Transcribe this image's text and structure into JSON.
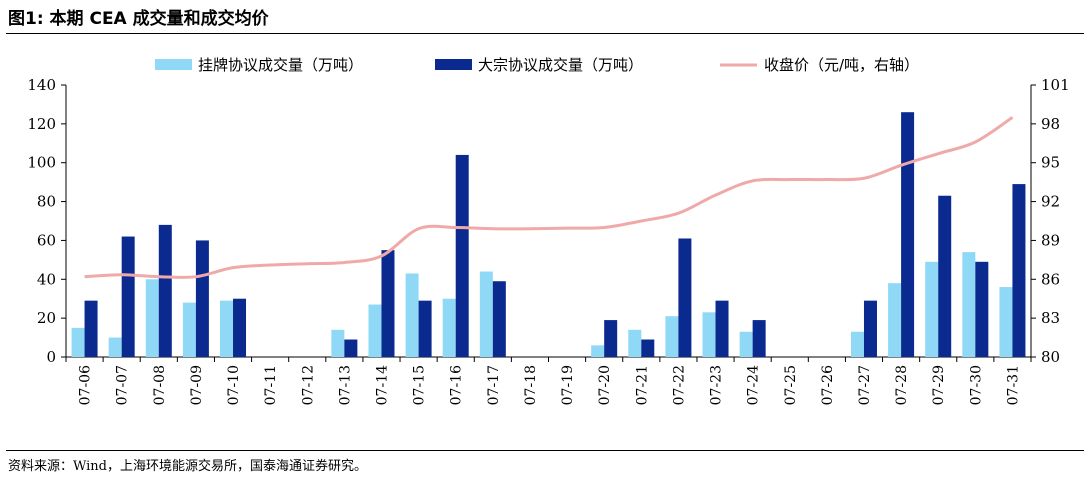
{
  "figure": {
    "title": "图1:  本期 CEA 成交量和成交均价",
    "source": "资料来源：Wind，上海环境能源交易所，国泰海通证券研究。"
  },
  "colors": {
    "listed_bar": "#8fd9f7",
    "block_bar": "#0a2a8f",
    "close_line": "#f0a9a9",
    "axis": "#000000"
  },
  "chart_data": {
    "type": "bar",
    "categories": [
      "07-06",
      "07-07",
      "07-08",
      "07-09",
      "07-10",
      "07-11",
      "07-12",
      "07-13",
      "07-14",
      "07-15",
      "07-16",
      "07-17",
      "07-18",
      "07-19",
      "07-20",
      "07-21",
      "07-22",
      "07-23",
      "07-24",
      "07-25",
      "07-26",
      "07-27",
      "07-28",
      "07-29",
      "07-30",
      "07-31"
    ],
    "series": [
      {
        "name": "挂牌协议成交量（万吨）",
        "type": "bar",
        "axis": "left",
        "values": [
          15,
          10,
          40,
          28,
          29,
          0,
          0,
          14,
          27,
          43,
          30,
          44,
          0,
          0,
          6,
          14,
          21,
          23,
          13,
          0,
          0,
          13,
          38,
          49,
          54,
          36
        ]
      },
      {
        "name": "大宗协议成交量（万吨）",
        "type": "bar",
        "axis": "left",
        "values": [
          29,
          62,
          68,
          60,
          30,
          0,
          0,
          9,
          55,
          29,
          104,
          39,
          0,
          0,
          19,
          9,
          61,
          29,
          19,
          0,
          0,
          29,
          126,
          83,
          49,
          89
        ]
      },
      {
        "name": "收盘价（元/吨，右轴）",
        "type": "line",
        "axis": "right",
        "values": [
          86.2,
          86.35,
          86.2,
          86.2,
          86.9,
          87.1,
          87.2,
          87.3,
          87.8,
          89.9,
          90.0,
          89.9,
          89.9,
          89.95,
          90.0,
          90.5,
          91.1,
          92.5,
          93.6,
          93.7,
          93.7,
          93.8,
          94.8,
          95.7,
          96.6,
          98.5
        ]
      }
    ],
    "ylim_left": [
      0,
      140
    ],
    "yticks_left": [
      0,
      20,
      40,
      60,
      80,
      100,
      120,
      140
    ],
    "ylim_right": [
      80,
      101
    ],
    "yticks_right": [
      80,
      83,
      86,
      89,
      92,
      95,
      98,
      101
    ],
    "legend_position": "top",
    "grid": false
  }
}
